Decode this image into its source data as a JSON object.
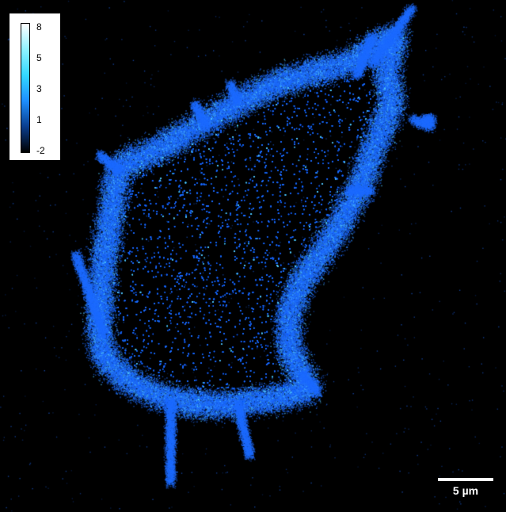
{
  "colorbar": {
    "ticks": [
      "8",
      "5",
      "3",
      "1",
      "-2"
    ],
    "gradient_colors": [
      "#ffffff",
      "#8ff3ff",
      "#33d8ff",
      "#1e8fff",
      "#0a3e8f",
      "#000000"
    ]
  },
  "scalebar": {
    "label": "5 µm",
    "color": "#ffffff"
  },
  "image": {
    "background_color": "#000000",
    "signal_color": "#1e6cff",
    "highlight_color": "#52c8ff"
  }
}
